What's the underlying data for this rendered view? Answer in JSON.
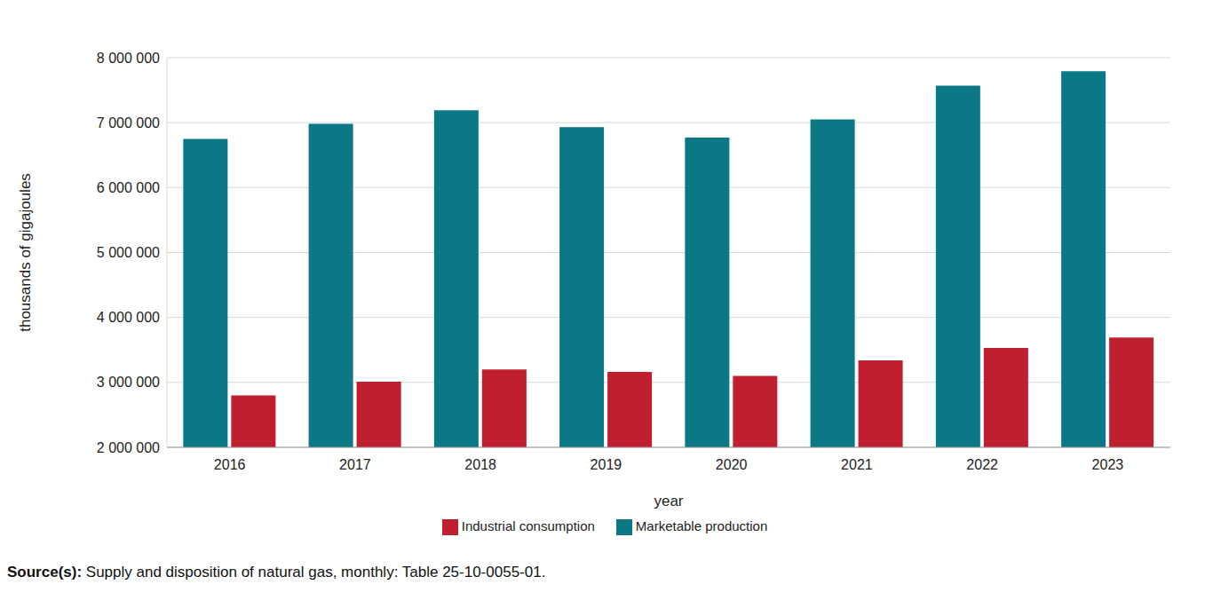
{
  "chart_data": {
    "type": "bar",
    "categories": [
      "2016",
      "2017",
      "2018",
      "2019",
      "2020",
      "2021",
      "2022",
      "2023"
    ],
    "series": [
      {
        "name": "Marketable production",
        "color": "#0a7885",
        "values": [
          6750000,
          6980000,
          7190000,
          6930000,
          6770000,
          7050000,
          7570000,
          7790000
        ]
      },
      {
        "name": "Industrial consumption",
        "color": "#c01f2f",
        "values": [
          2800000,
          3010000,
          3200000,
          3160000,
          3100000,
          3340000,
          3530000,
          3690000
        ]
      }
    ],
    "x_label": "year",
    "y_label": "thousands of gigajoules",
    "ylim": [
      2000000,
      8000000
    ],
    "yticks": [
      {
        "value": 2000000,
        "label": "2 000 000"
      },
      {
        "value": 3000000,
        "label": "3 000 000"
      },
      {
        "value": 4000000,
        "label": "4 000 000"
      },
      {
        "value": 5000000,
        "label": "5 000 000"
      },
      {
        "value": 6000000,
        "label": "6 000 000"
      },
      {
        "value": 7000000,
        "label": "7 000 000"
      },
      {
        "value": 8000000,
        "label": "8 000 000"
      }
    ],
    "grid": true,
    "legend": "bottom",
    "source": {
      "label": "Source(s):",
      "text": "Supply and disposition of natural gas, monthly: Table 25-10-0055-01."
    }
  }
}
